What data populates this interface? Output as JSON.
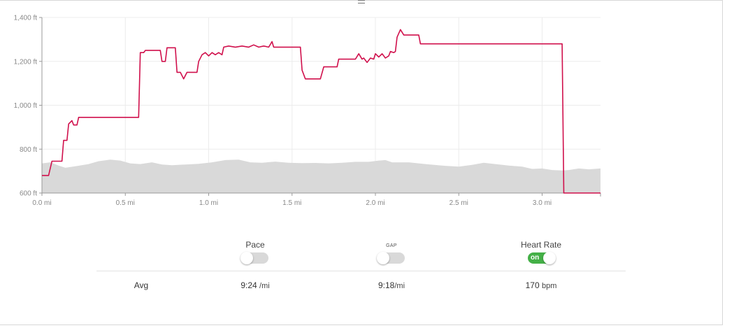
{
  "chart_data": {
    "type": "line",
    "xlabel": "",
    "ylabel": "",
    "xlim": [
      0,
      3.35
    ],
    "ylim": [
      600,
      1400
    ],
    "x_ticks": [
      "0.0 mi",
      "0.5 mi",
      "1.0 mi",
      "1.5 mi",
      "2.0 mi",
      "2.5 mi",
      "3.0 mi"
    ],
    "y_ticks": [
      "600 ft",
      "800 ft",
      "1,000 ft",
      "1,200 ft",
      "1,400 ft"
    ],
    "grid": true,
    "series": [
      {
        "kind": "line",
        "color": "#d0104c",
        "points": [
          [
            0.0,
            680
          ],
          [
            0.04,
            680
          ],
          [
            0.06,
            745
          ],
          [
            0.12,
            745
          ],
          [
            0.13,
            840
          ],
          [
            0.15,
            840
          ],
          [
            0.16,
            915
          ],
          [
            0.18,
            930
          ],
          [
            0.19,
            910
          ],
          [
            0.21,
            910
          ],
          [
            0.22,
            945
          ],
          [
            0.58,
            945
          ],
          [
            0.59,
            1240
          ],
          [
            0.61,
            1240
          ],
          [
            0.62,
            1250
          ],
          [
            0.71,
            1250
          ],
          [
            0.72,
            1200
          ],
          [
            0.74,
            1200
          ],
          [
            0.75,
            1262
          ],
          [
            0.8,
            1262
          ],
          [
            0.81,
            1150
          ],
          [
            0.83,
            1150
          ],
          [
            0.85,
            1120
          ],
          [
            0.87,
            1150
          ],
          [
            0.93,
            1150
          ],
          [
            0.94,
            1200
          ],
          [
            0.96,
            1230
          ],
          [
            0.98,
            1240
          ],
          [
            1.0,
            1225
          ],
          [
            1.02,
            1240
          ],
          [
            1.04,
            1230
          ],
          [
            1.06,
            1240
          ],
          [
            1.08,
            1230
          ],
          [
            1.09,
            1265
          ],
          [
            1.12,
            1270
          ],
          [
            1.16,
            1265
          ],
          [
            1.2,
            1270
          ],
          [
            1.24,
            1265
          ],
          [
            1.27,
            1275
          ],
          [
            1.3,
            1265
          ],
          [
            1.33,
            1270
          ],
          [
            1.36,
            1265
          ],
          [
            1.38,
            1290
          ],
          [
            1.39,
            1265
          ],
          [
            1.43,
            1265
          ],
          [
            1.55,
            1265
          ],
          [
            1.56,
            1160
          ],
          [
            1.58,
            1120
          ],
          [
            1.67,
            1120
          ],
          [
            1.69,
            1175
          ],
          [
            1.77,
            1175
          ],
          [
            1.78,
            1210
          ],
          [
            1.88,
            1210
          ],
          [
            1.9,
            1235
          ],
          [
            1.92,
            1210
          ],
          [
            1.93,
            1215
          ],
          [
            1.95,
            1195
          ],
          [
            1.97,
            1215
          ],
          [
            1.99,
            1210
          ],
          [
            2.0,
            1235
          ],
          [
            2.02,
            1220
          ],
          [
            2.04,
            1235
          ],
          [
            2.06,
            1215
          ],
          [
            2.08,
            1225
          ],
          [
            2.09,
            1245
          ],
          [
            2.11,
            1240
          ],
          [
            2.12,
            1245
          ],
          [
            2.13,
            1310
          ],
          [
            2.15,
            1345
          ],
          [
            2.17,
            1320
          ],
          [
            2.21,
            1320
          ],
          [
            2.26,
            1320
          ],
          [
            2.27,
            1280
          ],
          [
            3.12,
            1280
          ],
          [
            3.13,
            600
          ],
          [
            3.35,
            600
          ]
        ]
      },
      {
        "kind": "area",
        "color": "#d9d9d9",
        "points": [
          [
            0.0,
            735
          ],
          [
            0.05,
            740
          ],
          [
            0.1,
            725
          ],
          [
            0.14,
            715
          ],
          [
            0.2,
            722
          ],
          [
            0.28,
            732
          ],
          [
            0.34,
            745
          ],
          [
            0.41,
            752
          ],
          [
            0.47,
            748
          ],
          [
            0.53,
            735
          ],
          [
            0.59,
            732
          ],
          [
            0.66,
            740
          ],
          [
            0.72,
            730
          ],
          [
            0.78,
            727
          ],
          [
            0.86,
            730
          ],
          [
            0.94,
            733
          ],
          [
            1.02,
            740
          ],
          [
            1.1,
            750
          ],
          [
            1.18,
            752
          ],
          [
            1.25,
            740
          ],
          [
            1.32,
            738
          ],
          [
            1.4,
            743
          ],
          [
            1.48,
            738
          ],
          [
            1.56,
            736
          ],
          [
            1.64,
            737
          ],
          [
            1.72,
            735
          ],
          [
            1.8,
            738
          ],
          [
            1.88,
            742
          ],
          [
            1.96,
            742
          ],
          [
            2.02,
            748
          ],
          [
            2.06,
            750
          ],
          [
            2.1,
            740
          ],
          [
            2.2,
            740
          ],
          [
            2.3,
            732
          ],
          [
            2.4,
            725
          ],
          [
            2.5,
            720
          ],
          [
            2.58,
            728
          ],
          [
            2.65,
            738
          ],
          [
            2.72,
            732
          ],
          [
            2.8,
            725
          ],
          [
            2.88,
            720
          ],
          [
            2.94,
            710
          ],
          [
            3.0,
            712
          ],
          [
            3.06,
            705
          ],
          [
            3.12,
            703
          ],
          [
            3.16,
            705
          ],
          [
            3.22,
            712
          ],
          [
            3.28,
            708
          ],
          [
            3.35,
            712
          ]
        ]
      }
    ]
  },
  "toggles": [
    {
      "label": "Pace",
      "on": false,
      "on_text": ""
    },
    {
      "label": "GAP",
      "on": false,
      "on_text": ""
    },
    {
      "label": "Heart Rate",
      "on": true,
      "on_text": "on"
    }
  ],
  "summary": {
    "row_label": "Avg",
    "pace_value": "9:24",
    "pace_unit": "/mi",
    "gap_value": "9:18",
    "gap_unit": "/mi",
    "hr_value": "170",
    "hr_unit": "bpm"
  }
}
